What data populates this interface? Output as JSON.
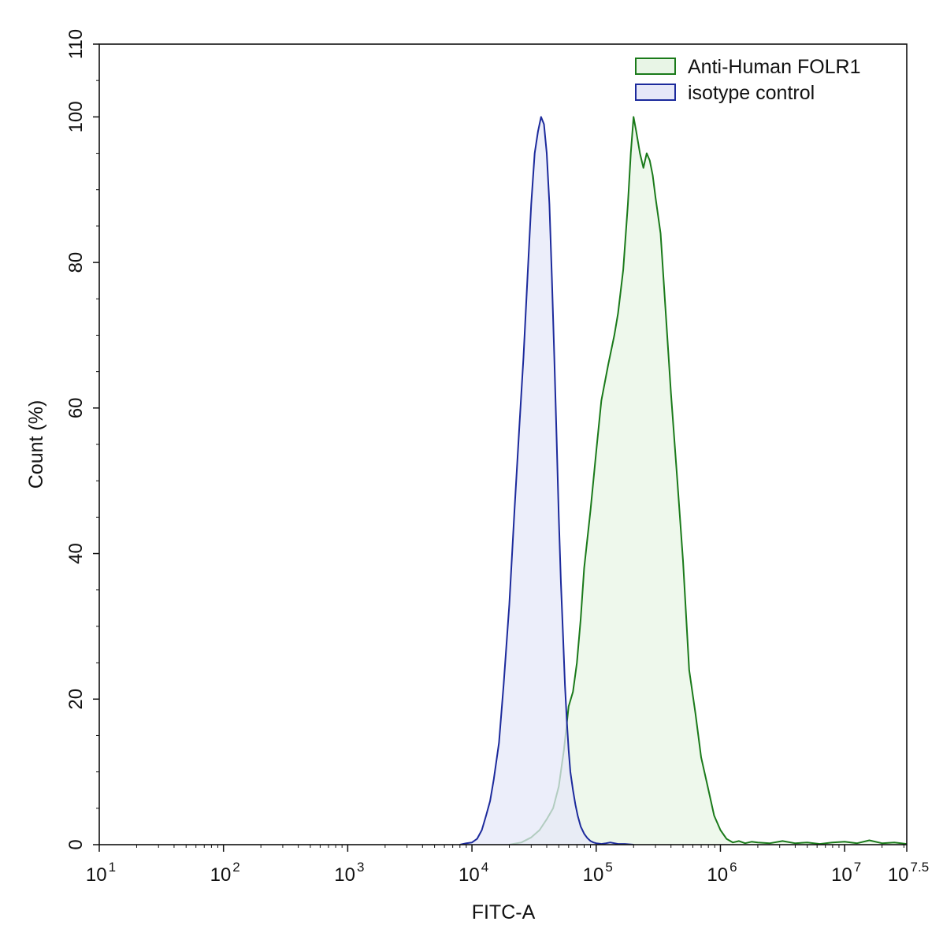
{
  "chart_data": {
    "type": "area",
    "xlabel": "FITC-A",
    "ylabel": "Count  (%)",
    "x_scale": "log10",
    "xlim": [
      10,
      31622776
    ],
    "ylim": [
      0,
      110
    ],
    "grid": false,
    "legend_position": "top-right",
    "x_ticks": [
      {
        "value": 10,
        "base": "10",
        "exp": "1"
      },
      {
        "value": 100,
        "base": "10",
        "exp": "2"
      },
      {
        "value": 1000,
        "base": "10",
        "exp": "3"
      },
      {
        "value": 10000,
        "base": "10",
        "exp": "4"
      },
      {
        "value": 100000,
        "base": "10",
        "exp": "5"
      },
      {
        "value": 1000000,
        "base": "10",
        "exp": "6"
      },
      {
        "value": 10000000,
        "base": "10",
        "exp": "7"
      },
      {
        "value": 31622776,
        "base": "10",
        "exp": "7.5"
      }
    ],
    "y_ticks": [
      {
        "value": 0,
        "label": "0"
      },
      {
        "value": 20,
        "label": "20"
      },
      {
        "value": 40,
        "label": "40"
      },
      {
        "value": 60,
        "label": "60"
      },
      {
        "value": 80,
        "label": "80"
      },
      {
        "value": 100,
        "label": "100"
      },
      {
        "value": 110,
        "label": "110"
      }
    ],
    "series": [
      {
        "name": "Anti-Human FOLR1",
        "stroke": "#1a7a1a",
        "fill": "#e8f5e6",
        "x": [
          20000,
          25000,
          30000,
          35000,
          40000,
          45000,
          50000,
          55000,
          60000,
          65000,
          70000,
          75000,
          80000,
          90000,
          100000,
          110000,
          125000,
          140000,
          150000,
          165000,
          180000,
          190000,
          200000,
          210000,
          225000,
          240000,
          255000,
          270000,
          285000,
          300000,
          330000,
          360000,
          400000,
          450000,
          500000,
          560000,
          630000,
          700000,
          790000,
          890000,
          1000000,
          1120000,
          1260000,
          1410000,
          1580000,
          1780000,
          2000000,
          2500000,
          3160000,
          3980000,
          5000000,
          6310000,
          7940000,
          10000000,
          12600000,
          15800000,
          20000000,
          25100000,
          31622776
        ],
        "values": [
          0,
          0.3,
          1,
          2,
          3.5,
          5,
          8,
          13,
          19,
          21,
          25,
          31,
          38,
          46,
          54,
          61,
          66,
          70,
          73,
          79,
          88,
          95,
          100,
          98,
          95,
          93,
          95,
          94,
          92,
          89,
          84,
          74,
          62,
          50,
          39,
          24,
          18,
          12,
          8,
          4,
          2,
          0.8,
          0.3,
          0.5,
          0.2,
          0.4,
          0.3,
          0.2,
          0.5,
          0.2,
          0.3,
          0.1,
          0.3,
          0.4,
          0.2,
          0.6,
          0.2,
          0.3,
          0.1
        ]
      },
      {
        "name": "isotype control",
        "stroke": "#1c2a9c",
        "fill": "#e6e8f8",
        "x": [
          8000,
          9000,
          10000,
          11000,
          12000,
          13000,
          14000,
          15000,
          16500,
          18000,
          20000,
          22000,
          24000,
          26000,
          28000,
          30000,
          32000,
          34000,
          36000,
          38000,
          40000,
          42000,
          44000,
          46000,
          48000,
          50000,
          52000,
          54000,
          56000,
          58000,
          60000,
          62000,
          65000,
          68000,
          71000,
          75000,
          80000,
          85000,
          90000,
          95000,
          100000,
          110000,
          120000,
          130000,
          150000,
          170000,
          200000
        ],
        "values": [
          0,
          0.2,
          0.3,
          0.8,
          2,
          4,
          6,
          9,
          14,
          22,
          33,
          46,
          57,
          67,
          78,
          88,
          95,
          98,
          100,
          99,
          95,
          88,
          78,
          67,
          56,
          45,
          36,
          29,
          22,
          17,
          13,
          10,
          7.5,
          5.5,
          4,
          2.5,
          1.5,
          0.9,
          0.5,
          0.3,
          0.2,
          0.1,
          0.2,
          0.3,
          0.1,
          0.1,
          0
        ]
      }
    ]
  }
}
